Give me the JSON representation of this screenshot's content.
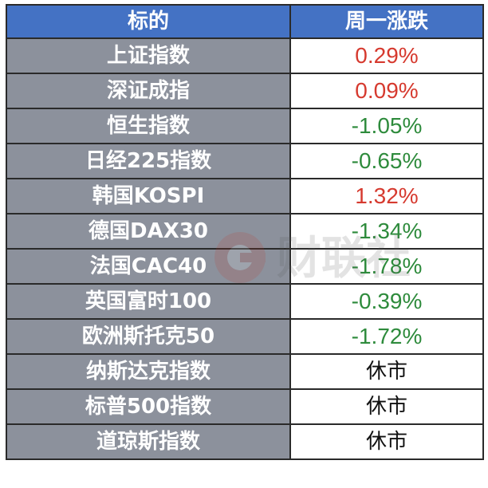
{
  "header": {
    "col_name": "标的",
    "col_change": "周一涨跌"
  },
  "rows": [
    {
      "name": "上证指数",
      "change": "0.29%",
      "trend": "up"
    },
    {
      "name": "深证成指",
      "change": "0.09%",
      "trend": "up"
    },
    {
      "name": "恒生指数",
      "change": "-1.05%",
      "trend": "down"
    },
    {
      "name": "日经225指数",
      "change": "-0.65%",
      "trend": "down"
    },
    {
      "name": "韩国KOSPI",
      "change": "1.32%",
      "trend": "up"
    },
    {
      "name": "德国DAX30",
      "change": "-1.34%",
      "trend": "down"
    },
    {
      "name": "法国CAC40",
      "change": "-1.78%",
      "trend": "down"
    },
    {
      "name": "英国富时100",
      "change": "-0.39%",
      "trend": "down"
    },
    {
      "name": "欧洲斯托克50",
      "change": "-1.72%",
      "trend": "down"
    },
    {
      "name": "纳斯达克指数",
      "change": "休市",
      "trend": "closed"
    },
    {
      "name": "标普500指数",
      "change": "休市",
      "trend": "closed"
    },
    {
      "name": "道琼斯指数",
      "change": "休市",
      "trend": "closed"
    }
  ],
  "watermark": {
    "text": "财联社",
    "icon": "cls-logo-icon"
  },
  "colors": {
    "header_bg": "#4472c4",
    "name_bg": "#8c919c",
    "up": "#d63a2f",
    "down": "#2e8b3c",
    "closed": "#111111"
  }
}
